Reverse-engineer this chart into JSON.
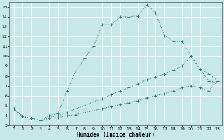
{
  "xlabel": "Humidex (Indice chaleur)",
  "bg_color": "#c8e8e8",
  "grid_color": "#b0d4d4",
  "line_color": "#2e7d6e",
  "xlim": [
    -0.5,
    23.5
  ],
  "ylim": [
    3,
    15.5
  ],
  "xticks": [
    0,
    1,
    2,
    3,
    4,
    5,
    6,
    7,
    8,
    9,
    10,
    11,
    12,
    13,
    14,
    15,
    16,
    17,
    18,
    19,
    20,
    21,
    22,
    23
  ],
  "yticks": [
    3,
    4,
    5,
    6,
    7,
    8,
    9,
    10,
    11,
    12,
    13,
    14,
    15
  ],
  "line1_x": [
    0,
    1,
    2,
    3,
    4,
    5,
    6,
    7,
    8,
    9,
    10,
    11,
    12,
    13,
    14,
    15,
    16,
    17,
    18,
    19,
    20,
    21,
    22,
    23
  ],
  "line1_y": [
    4.7,
    3.9,
    3.7,
    3.5,
    4.0,
    4.2,
    6.5,
    8.5,
    9.8,
    11.0,
    13.2,
    13.2,
    14.0,
    14.0,
    14.1,
    15.2,
    14.4,
    12.1,
    11.5,
    11.5,
    10.0,
    8.7,
    7.5,
    7.3
  ],
  "line2_x": [
    0,
    1,
    2,
    3,
    4,
    5,
    6,
    7,
    8,
    9,
    10,
    11,
    12,
    13,
    14,
    15,
    16,
    17,
    18,
    19,
    20,
    21,
    22,
    23
  ],
  "line2_y": [
    4.7,
    3.9,
    3.7,
    3.5,
    3.8,
    4.0,
    4.3,
    4.7,
    5.0,
    5.4,
    5.7,
    6.1,
    6.5,
    6.8,
    7.2,
    7.6,
    7.9,
    8.2,
    8.6,
    9.0,
    10.0,
    8.7,
    8.2,
    7.5
  ],
  "line3_x": [
    0,
    1,
    2,
    3,
    4,
    5,
    6,
    7,
    8,
    9,
    10,
    11,
    12,
    13,
    14,
    15,
    16,
    17,
    18,
    19,
    20,
    21,
    22,
    23
  ],
  "line3_y": [
    4.7,
    3.9,
    3.7,
    3.5,
    3.7,
    3.8,
    4.0,
    4.1,
    4.3,
    4.5,
    4.7,
    4.9,
    5.1,
    5.3,
    5.5,
    5.8,
    6.0,
    6.2,
    6.5,
    6.8,
    7.0,
    6.8,
    6.5,
    7.5
  ]
}
